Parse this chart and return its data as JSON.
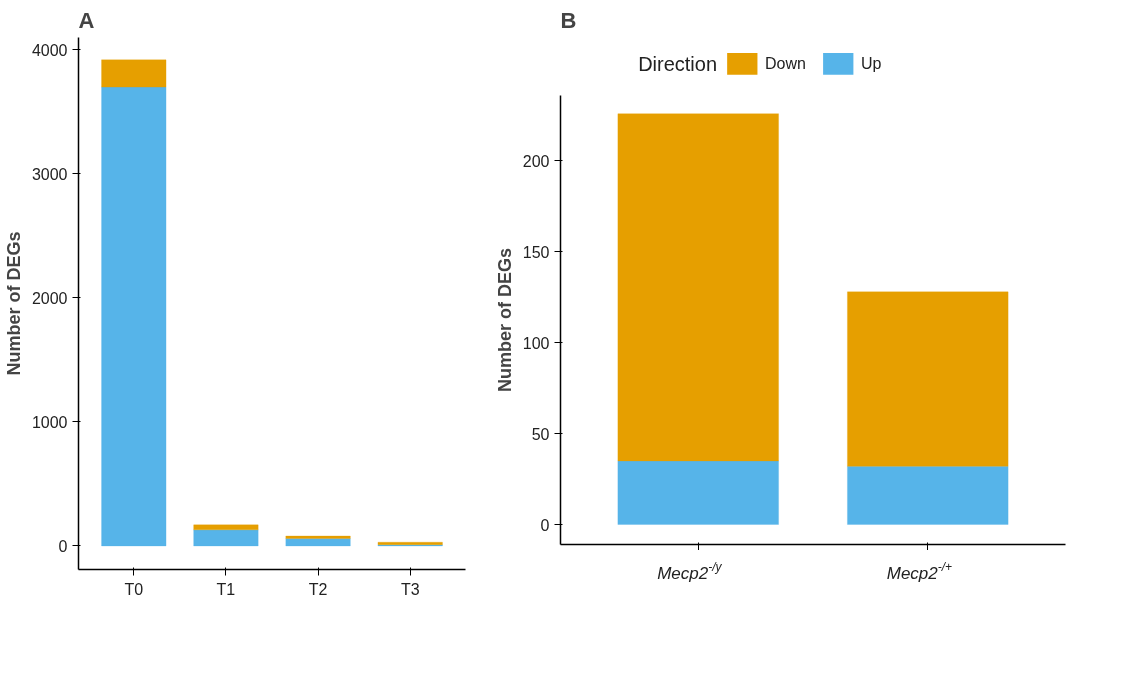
{
  "chart_data": [
    {
      "type": "bar",
      "title": "A",
      "ylabel": "Number of DEGs",
      "categories": [
        "T0",
        "T1",
        "T2",
        "T3"
      ],
      "stacked": true,
      "ylim": [
        -190,
        4100
      ],
      "yticks": [
        0,
        1000,
        2000,
        3000,
        4000
      ],
      "grid": false,
      "legend": false,
      "series": [
        {
          "color": "#56b4e9",
          "values": [
            3700,
            130,
            60,
            10
          ]
        },
        {
          "color": "#e69f00",
          "values": [
            220,
            40,
            20,
            20
          ]
        }
      ]
    },
    {
      "type": "bar",
      "title": "B",
      "ylabel": "Number of DEGs",
      "categories": [
        "Mecp2$^{-/y}$",
        "Mecp2$^{-/+}$"
      ],
      "stacked": true,
      "ylim": [
        -11,
        236
      ],
      "yticks": [
        0,
        50,
        100,
        150,
        200
      ],
      "grid": false,
      "legend": "top",
      "legend_title": "Direction",
      "series": [
        {
          "name": "Up",
          "color": "#56b4e9",
          "values": [
            35,
            32
          ]
        },
        {
          "name": "Down",
          "color": "#e69f00",
          "values": [
            191,
            96
          ]
        }
      ]
    }
  ]
}
